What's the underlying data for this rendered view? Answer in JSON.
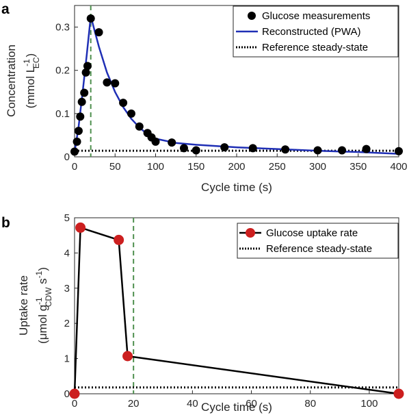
{
  "chart_data": [
    {
      "panel": "a",
      "type": "scatter",
      "xlabel": "Cycle time (s)",
      "ylabel_line1": "Concentration",
      "ylabel_line2": "(mmol L",
      "ylabel_sub": "EC",
      "ylabel_sup": "-1",
      "ylabel_close": ")",
      "xlim": [
        0,
        400
      ],
      "ylim": [
        0,
        0.35
      ],
      "xticks": [
        0,
        50,
        100,
        150,
        200,
        250,
        300,
        350,
        400
      ],
      "yticks": [
        0,
        0.1,
        0.2,
        0.3
      ],
      "ytick_labels": [
        "0",
        "0.1",
        "0.2",
        "0.3"
      ],
      "vline_x": 20,
      "series": [
        {
          "name": "Glucose measurements",
          "kind": "points",
          "color": "#000000",
          "x": [
            0,
            3,
            5,
            7,
            9,
            12,
            14,
            16,
            20,
            30,
            40,
            50,
            60,
            70,
            80,
            90,
            95,
            100,
            120,
            135,
            150,
            185,
            220,
            260,
            300,
            330,
            360,
            400
          ],
          "y": [
            0.012,
            0.035,
            0.06,
            0.093,
            0.127,
            0.148,
            0.195,
            0.21,
            0.32,
            0.288,
            0.172,
            0.17,
            0.125,
            0.1,
            0.07,
            0.055,
            0.045,
            0.035,
            0.033,
            0.02,
            0.015,
            0.022,
            0.02,
            0.017,
            0.015,
            0.015,
            0.018,
            0.013
          ]
        },
        {
          "name": "Reconstructed (PWA)",
          "kind": "line",
          "color": "#1f2fb5",
          "x": [
            0,
            5,
            10,
            15,
            20,
            25,
            30,
            40,
            50,
            60,
            70,
            80,
            90,
            100,
            125,
            150,
            200,
            250,
            300,
            350,
            400
          ],
          "y": [
            0.01,
            0.07,
            0.15,
            0.235,
            0.325,
            0.29,
            0.255,
            0.195,
            0.15,
            0.115,
            0.088,
            0.068,
            0.052,
            0.042,
            0.032,
            0.028,
            0.022,
            0.018,
            0.014,
            0.011,
            0.007
          ]
        },
        {
          "name": "Reference steady-state",
          "kind": "dotted",
          "color": "#000000",
          "x": [
            0,
            400
          ],
          "y": [
            0.014,
            0.014
          ]
        }
      ],
      "legend_position": "top-right"
    },
    {
      "panel": "b",
      "type": "line",
      "xlabel": "Cycle time (s)",
      "ylabel_line1": "Uptake rate",
      "ylabel_line2": "(μmol g",
      "ylabel_sub": "CDW",
      "ylabel_tail": " s",
      "ylabel_sup": "-1",
      "ylabel_sup2": "-1",
      "ylabel_close": ")",
      "xlim": [
        0,
        110
      ],
      "ylim": [
        0,
        5
      ],
      "xticks": [
        0,
        20,
        40,
        60,
        80,
        100
      ],
      "yticks": [
        0,
        1,
        2,
        3,
        4,
        5
      ],
      "ytick_labels": [
        "0",
        "1",
        "2",
        "3",
        "4",
        "5"
      ],
      "vline_x": 20,
      "series": [
        {
          "name": "Glucose uptake rate",
          "kind": "line-markers",
          "color": "#000000",
          "marker_color": "#cc1f1f",
          "x": [
            0,
            2,
            15,
            18,
            110
          ],
          "y": [
            0,
            4.72,
            4.37,
            1.07,
            0
          ]
        },
        {
          "name": "Reference steady-state",
          "kind": "dotted",
          "color": "#000000",
          "x": [
            0,
            110
          ],
          "y": [
            0.18,
            0.18
          ]
        }
      ],
      "legend_position": "top-right"
    }
  ],
  "colors": {
    "vline": "#4d8f4d",
    "marker_red": "#cc1f1f",
    "pwa_blue": "#1f2fb5",
    "axis": "#262626"
  }
}
